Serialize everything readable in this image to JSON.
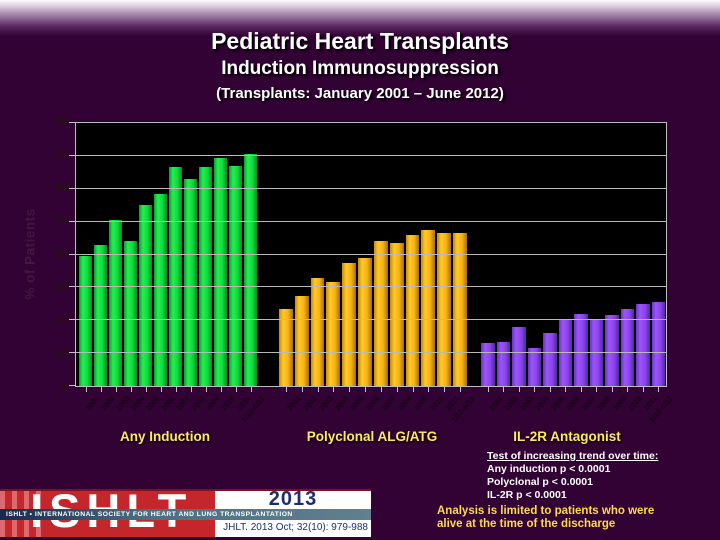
{
  "slide": {
    "title": "Pediatric Heart Transplants",
    "subtitle": "Induction Immunosuppression",
    "date_range": "(Transplants: January 2001 – June 2012)"
  },
  "chart_data": {
    "type": "bar",
    "title": "Pediatric Heart Transplants",
    "subtitle": "Induction Immunosuppression",
    "period": "(Transplants: January 2001 – June 2012)",
    "xlabel": "",
    "ylabel": "% of Patients",
    "ylim": [
      0,
      80
    ],
    "ytick_step": 10,
    "grid": true,
    "plot_background": "#000000",
    "legend_position": "bottom",
    "categories": [
      "2001",
      "2002",
      "2003",
      "2004",
      "2005",
      "2006",
      "2007",
      "2008",
      "2009",
      "2010",
      "2011",
      "1/12-6/12"
    ],
    "series": [
      {
        "name": "Any Induction",
        "color": "#1ddd44",
        "gradient": [
          "#0a9e2c",
          "#25ef50",
          "#0ddc3c",
          "#078a24"
        ],
        "values": [
          39.5,
          43,
          50.5,
          44,
          55,
          58.5,
          66.5,
          63,
          66.5,
          69.5,
          67,
          70.5
        ]
      },
      {
        "name": "Polyclonal ALG/ATG",
        "color": "#ffb515",
        "gradient": [
          "#cc8a06",
          "#ffc929",
          "#f7b214",
          "#a96e02"
        ],
        "values": [
          23.5,
          27.5,
          33,
          31.5,
          37.5,
          39,
          44,
          43.5,
          46,
          47.5,
          46.5,
          46.5
        ]
      },
      {
        "name": "IL-2R Antagonist",
        "color": "#8c46f0",
        "gradient": [
          "#6a34c4",
          "#9d55fa",
          "#8a44ee",
          "#5526a0"
        ],
        "values": [
          13,
          13.5,
          18,
          11.5,
          16,
          20,
          22,
          20.5,
          21.5,
          23.5,
          25,
          25.5
        ]
      }
    ]
  },
  "stats": {
    "heading": "Test of increasing trend over time:",
    "lines": [
      "Any induction p < 0.0001",
      "Polyclonal p < 0.0001",
      "IL-2R p < 0.0001"
    ],
    "note_line1": "Analysis is limited to patients who were",
    "note_line2": "alive at the time of the discharge"
  },
  "footer": {
    "logo_text": "ISHLT",
    "banner": "ISHLT • INTERNATIONAL SOCIETY FOR HEART AND LUNG TRANSPLANTATION",
    "year": "2013",
    "citation": "JHLT. 2013 Oct; 32(10): 979-988"
  },
  "colors": {
    "slide_background": "#310233",
    "accent_yellow": "#ffe95c",
    "logo_red": "#c5262c",
    "logo_navy": "#1b2f70"
  }
}
